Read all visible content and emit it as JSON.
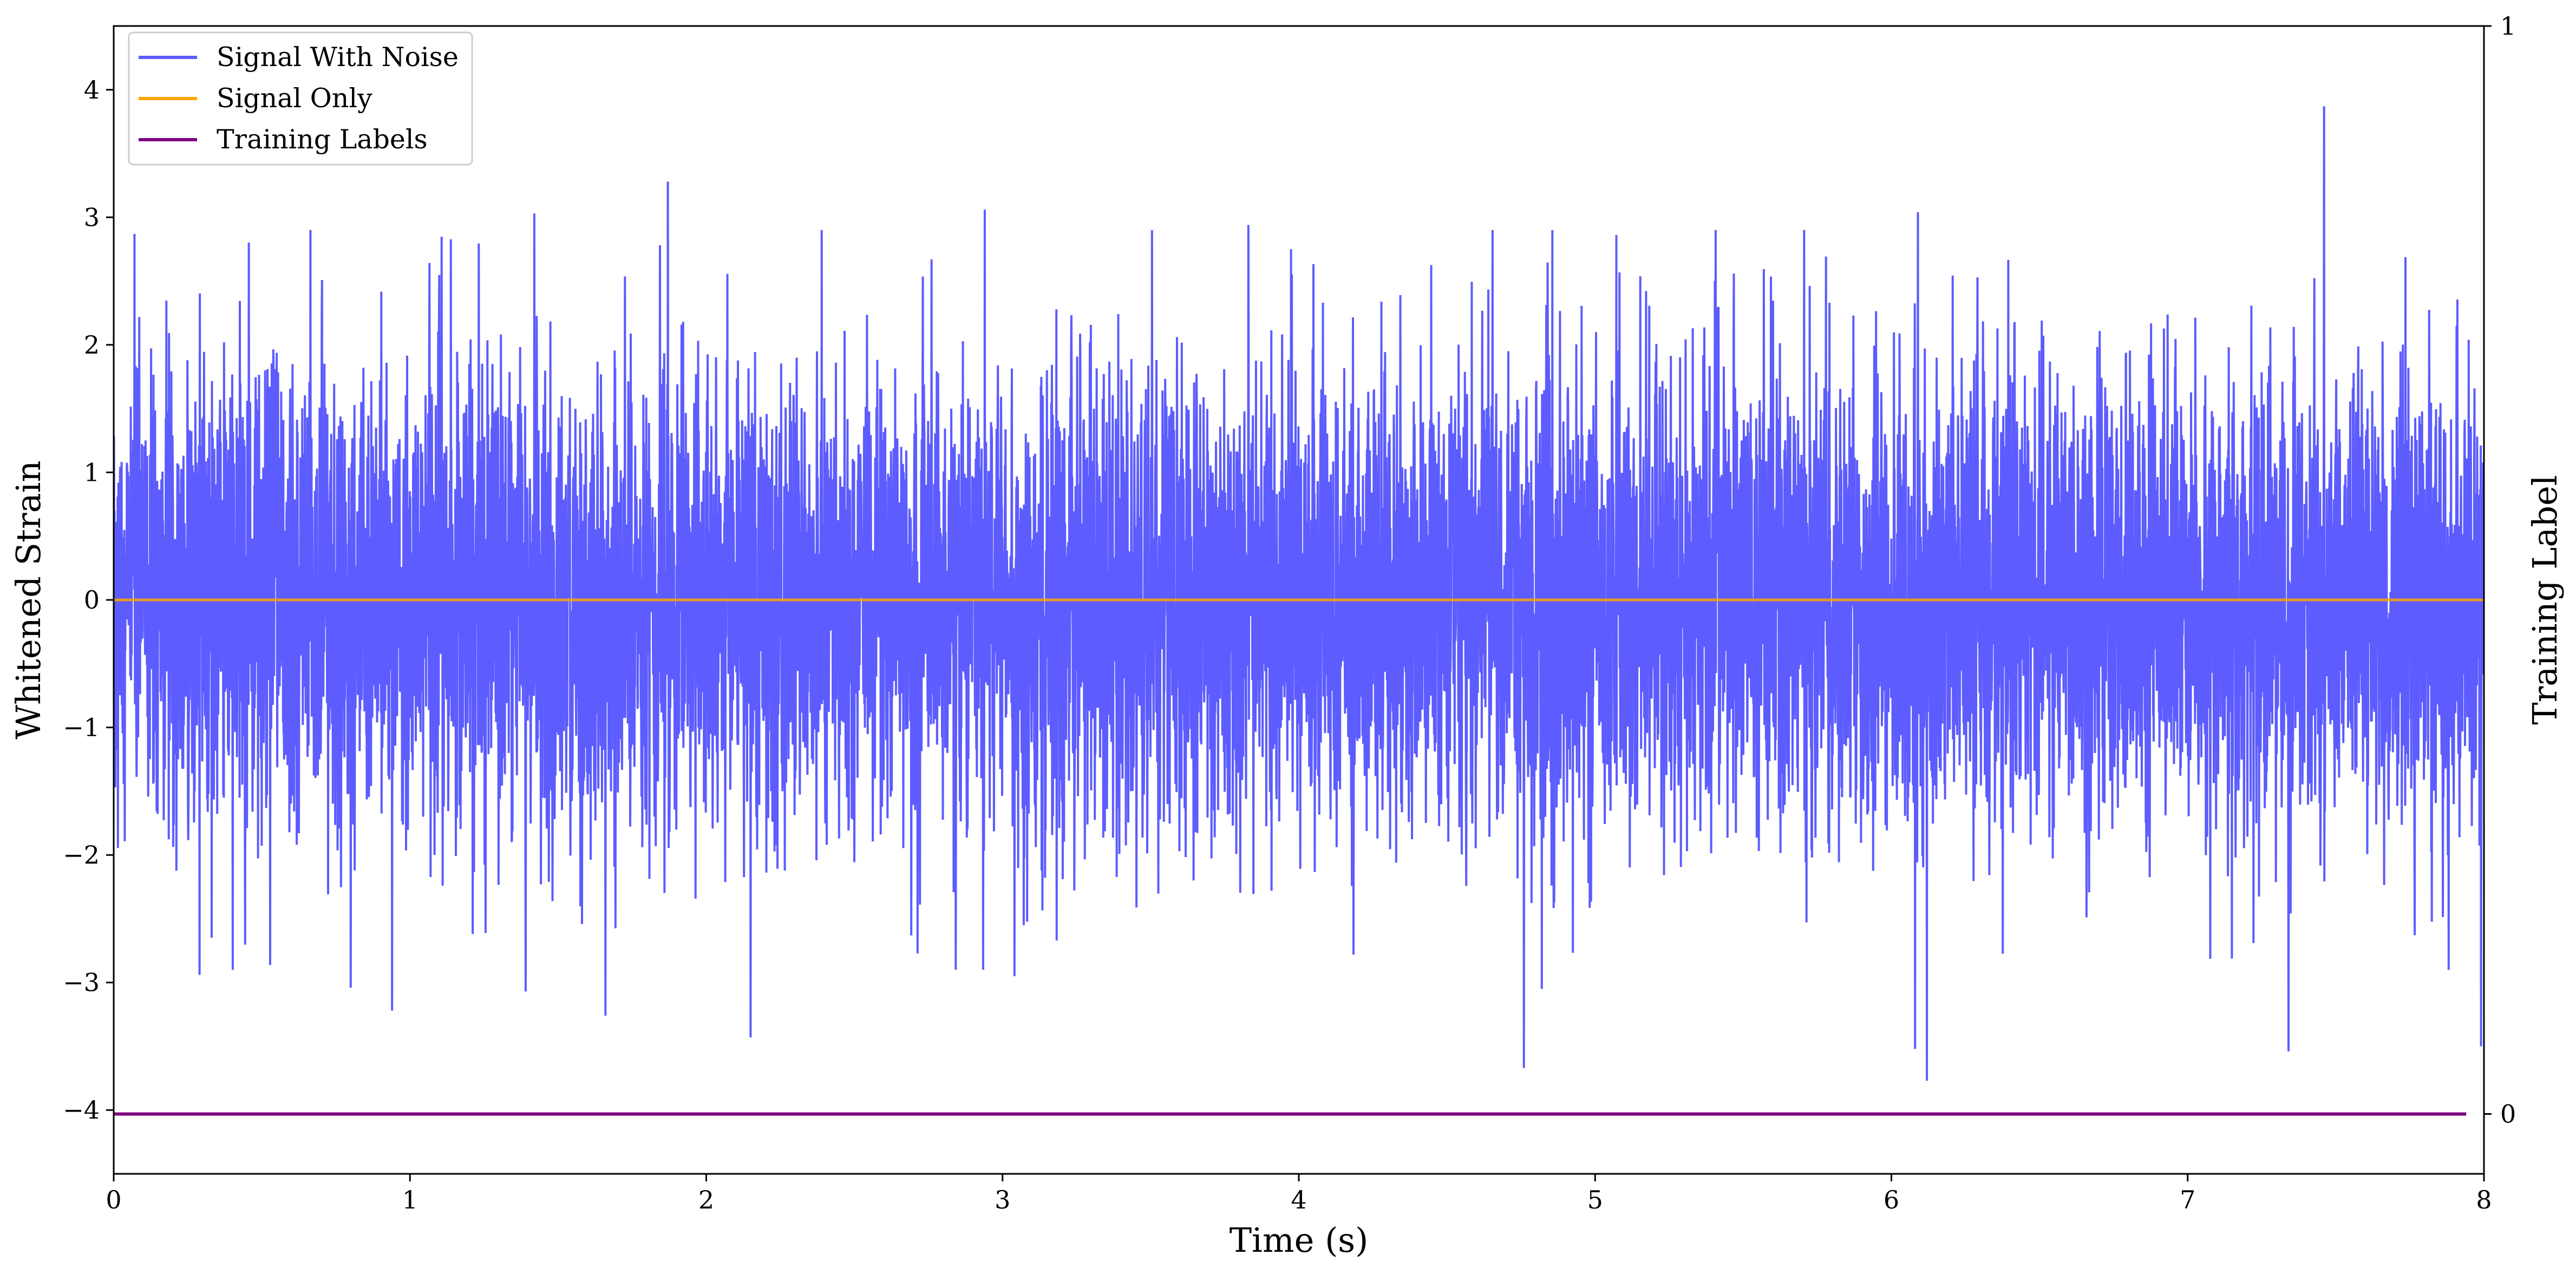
{
  "chart_data": {
    "type": "line",
    "xlabel": "Time (s)",
    "ylabel": "Whitened Strain",
    "y2label": "Training Label",
    "xlim": [
      0,
      8
    ],
    "ylim": [
      -4.5,
      4.5
    ],
    "y2lim": [
      -0.055,
      1.0
    ],
    "x_ticks": [
      0,
      1,
      2,
      3,
      4,
      5,
      6,
      7,
      8
    ],
    "x_tick_labels": [
      "0",
      "1",
      "2",
      "3",
      "4",
      "5",
      "6",
      "7",
      "8"
    ],
    "y_ticks": [
      -4,
      -3,
      -2,
      -1,
      0,
      1,
      2,
      3,
      4
    ],
    "y_tick_labels": [
      "−4",
      "−3",
      "−2",
      "−1",
      "0",
      "1",
      "2",
      "3",
      "4"
    ],
    "y2_ticks": [
      0,
      1
    ],
    "y2_tick_labels": [
      "0",
      "1"
    ],
    "grid": false,
    "legend_placement": "top-left",
    "series": [
      {
        "name": "Signal With Noise",
        "color": "#3333ff",
        "axis": "left",
        "description_of_values": "whitened noise, approx. zero-mean, std ~0.9",
        "noise_std": 0.9,
        "x_range": [
          0,
          8
        ],
        "peaks": [
          {
            "x": 0.07,
            "y": 2.87
          },
          {
            "x": 0.29,
            "y": -2.94
          },
          {
            "x": 0.8,
            "y": -3.04
          },
          {
            "x": 0.94,
            "y": -3.22
          },
          {
            "x": 1.39,
            "y": -3.07
          },
          {
            "x": 1.42,
            "y": 3.03
          },
          {
            "x": 1.66,
            "y": -3.26
          },
          {
            "x": 1.87,
            "y": 3.28
          },
          {
            "x": 2.15,
            "y": -3.43
          },
          {
            "x": 2.94,
            "y": 3.06
          },
          {
            "x": 3.04,
            "y": -2.95
          },
          {
            "x": 3.83,
            "y": 2.94
          },
          {
            "x": 4.76,
            "y": -3.67
          },
          {
            "x": 4.82,
            "y": -3.05
          },
          {
            "x": 6.08,
            "y": -3.52
          },
          {
            "x": 6.09,
            "y": 3.04
          },
          {
            "x": 6.12,
            "y": -3.77
          },
          {
            "x": 7.34,
            "y": -3.54
          },
          {
            "x": 7.46,
            "y": 3.87
          },
          {
            "x": 7.99,
            "y": -3.5
          }
        ]
      },
      {
        "name": "Signal Only",
        "color": "#ffa500",
        "axis": "left",
        "x": [
          0,
          8
        ],
        "y": [
          0,
          0
        ]
      },
      {
        "name": "Training Labels",
        "color": "#800080",
        "axis": "right",
        "x": [
          0,
          7.94
        ],
        "y": [
          0,
          0
        ]
      }
    ]
  }
}
